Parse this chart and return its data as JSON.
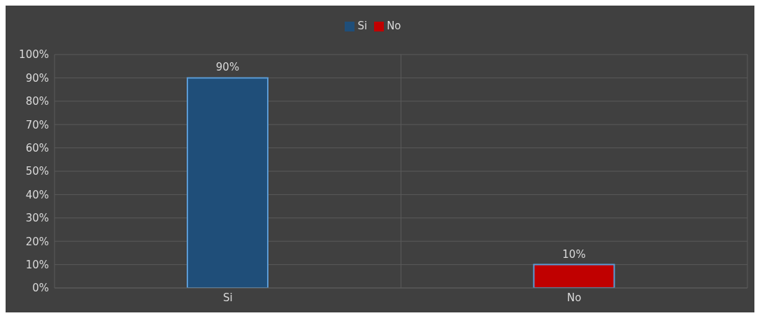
{
  "chart_data": {
    "type": "bar",
    "categories": [
      "Si",
      "No"
    ],
    "series": [
      {
        "name": "Si",
        "color": "#1f4e79",
        "values": [
          90,
          null
        ]
      },
      {
        "name": "No",
        "color": "#c00000",
        "values": [
          null,
          10
        ]
      }
    ],
    "stacked": true,
    "ylim": [
      0,
      100
    ],
    "yticks": [
      {
        "value": 0,
        "label": "0%"
      },
      {
        "value": 10,
        "label": "10%"
      },
      {
        "value": 20,
        "label": "20%"
      },
      {
        "value": 30,
        "label": "30%"
      },
      {
        "value": 40,
        "label": "40%"
      },
      {
        "value": 50,
        "label": "50%"
      },
      {
        "value": 60,
        "label": "60%"
      },
      {
        "value": 70,
        "label": "70%"
      },
      {
        "value": 80,
        "label": "80%"
      },
      {
        "value": 90,
        "label": "90%"
      },
      {
        "value": 100,
        "label": "100%"
      }
    ],
    "value_labels": [
      "90%",
      "10%"
    ],
    "grid": true,
    "legend": "top"
  }
}
